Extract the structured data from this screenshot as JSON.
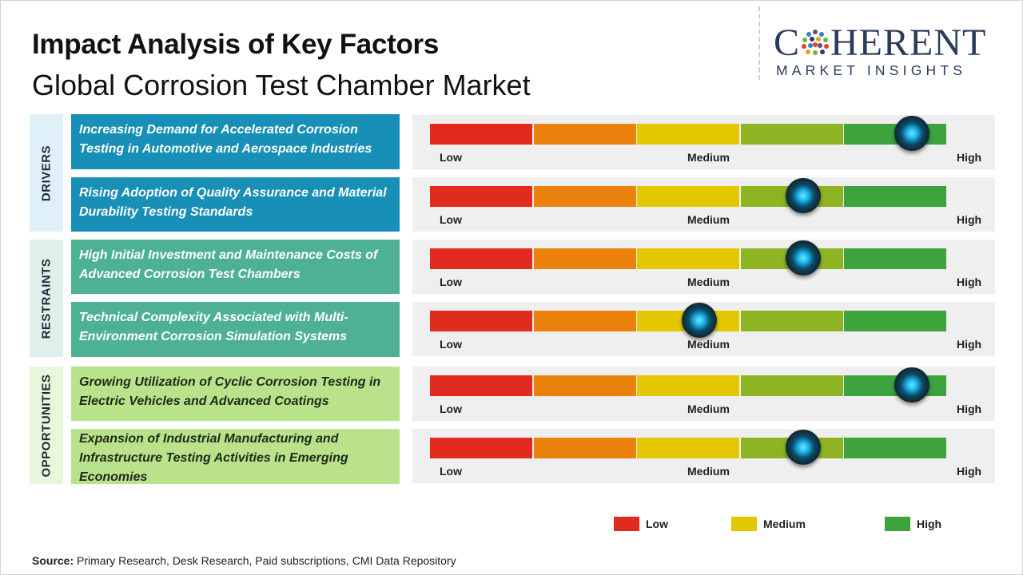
{
  "header": {
    "title": "Impact Analysis of Key Factors",
    "subtitle": "Global Corrosion Test Chamber Market"
  },
  "logo": {
    "line1_a": "C",
    "line1_b": "HERENT",
    "line2": "MARKET INSIGHTS"
  },
  "colors": {
    "segments": [
      "#e12b1e",
      "#ec820e",
      "#e3c800",
      "#8eb423",
      "#3ea23d"
    ],
    "drivers_bg": "#178fb6",
    "drivers_cat_bg": "#dff0f8",
    "restraints_bg": "#4fb194",
    "restraints_cat_bg": "#dff0ea",
    "opportunities_bg": "#b9e28a",
    "opportunities_cat_bg": "#e8f6dc",
    "legend_low": "#e12b1e",
    "legend_medium": "#e3c800",
    "legend_high": "#3ea23d"
  },
  "categories": [
    {
      "label": "DRIVERS"
    },
    {
      "label": "RESTRAINTS"
    },
    {
      "label": "OPPORTUNITIES"
    }
  ],
  "scale_labels": {
    "low": "Low",
    "medium": "Medium",
    "high": "High"
  },
  "chart_data": {
    "type": "bar",
    "title": "Impact Analysis of Key Factors",
    "subtitle": "Global Corrosion Test Chamber Market",
    "scale": [
      "Low",
      "Medium",
      "High"
    ],
    "xlim": [
      0,
      1
    ],
    "factors": [
      {
        "category": "DRIVERS",
        "text": "Increasing Demand for Accelerated Corrosion Testing in Automotive and Aerospace Industries",
        "impact": 0.93
      },
      {
        "category": "DRIVERS",
        "text": "Rising Adoption of Quality Assurance and Material Durability Testing Standards",
        "impact": 0.72
      },
      {
        "category": "RESTRAINTS",
        "text": "High Initial Investment and Maintenance Costs of Advanced Corrosion Test Chambers",
        "impact": 0.72
      },
      {
        "category": "RESTRAINTS",
        "text": "Technical Complexity Associated with Multi-Environment Corrosion Simulation Systems",
        "impact": 0.52
      },
      {
        "category": "OPPORTUNITIES",
        "text": "Growing Utilization of Cyclic Corrosion Testing in Electric Vehicles and Advanced Coatings",
        "impact": 0.93
      },
      {
        "category": "OPPORTUNITIES",
        "text": "Expansion of Industrial Manufacturing and Infrastructure Testing Activities in Emerging Economies",
        "impact": 0.72
      }
    ],
    "legend": [
      {
        "label": "Low",
        "color": "#e12b1e"
      },
      {
        "label": "Medium",
        "color": "#e3c800"
      },
      {
        "label": "High",
        "color": "#3ea23d"
      }
    ],
    "legend_position": "bottom-right"
  },
  "footer": {
    "source_label": "Source:",
    "source_text": " Primary Research, Desk Research, Paid subscriptions, CMI Data Repository"
  }
}
